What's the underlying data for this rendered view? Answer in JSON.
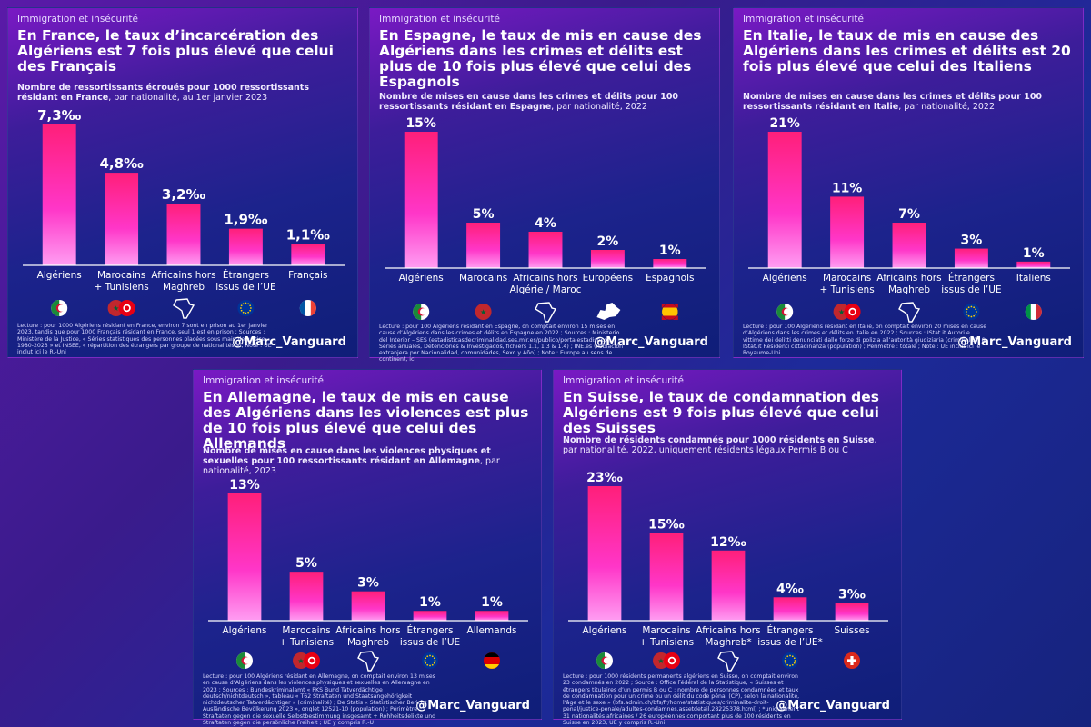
{
  "panels": [
    {
      "kicker": "Immigration et insécurité",
      "title": "En France, le taux d’incarcération des Algériens est 7 fois plus élevé que celui des Français",
      "subtitle_bold": "Nombre de ressortissants écroués pour 1000 ressortissants résidant en France",
      "subtitle_rest": ", par nationalité, au 1er janvier 2023",
      "footnote": "Lecture : pour 1000 Algériens résidant en France, environ 7 sont en prison au 1er janvier 2023, tandis que pour 1000 Français résidant en France, seul 1 est en prison ; Sources : Ministère de la Justice, « Séries statistiques des personnes placées sous main de justice 1980-2023 » et INSEE, « répartition des étrangers par groupe de nationalités » ; Note : UE inclut ici le R.-Uni",
      "handle": "@Marc_Vanguard",
      "chart_data": {
        "type": "bar",
        "categories": [
          "Algériens",
          "Marocains\n+ Tunisiens",
          "Africains hors\nMaghreb",
          "Étrangers\nissus de l’UE",
          "Français"
        ],
        "values": [
          7.3,
          4.8,
          3.2,
          1.9,
          1.1
        ],
        "value_labels": [
          "7,3‰",
          "4,8‰",
          "3,2‰",
          "1,9‰",
          "1,1‰"
        ],
        "ylim": [
          0,
          7.3
        ],
        "flags": [
          "algeria",
          "morocco-tunisia",
          "africa",
          "eu",
          "france"
        ]
      }
    },
    {
      "kicker": "Immigration et insécurité",
      "title": "En Espagne, le taux de mis en cause des Algériens dans les crimes et délits est plus de 10 fois plus élevé que celui des Espagnols",
      "subtitle_bold": "Nombre de mises en cause dans les crimes et délits pour 100 ressortissants résidant en Espagne",
      "subtitle_rest": ", par nationalité, 2022",
      "footnote": "Lecture : pour 100 Algériens résidant en Espagne, on comptait environ 15 mises en cause d’Algériens dans les crimes et délits en Espagne en 2022 ; Sources : Ministerio del Interior – SES (estadisticasdecriminalidad.ses.mir.es/publico/portalestadistico/, Series anuales, Detenciones & Investigados, fichiers 1.1, 1.3 & 1.4) ; INE.es (Población extranjera por Nacionalidad, comunidades, Sexo y Año) ; Note : Europe au sens de continent, ici",
      "handle": "@Marc_Vanguard",
      "chart_data": {
        "type": "bar",
        "categories": [
          "Algériens",
          "Marocains",
          "Africains hors\nAlgérie / Maroc",
          "Européens",
          "Espagnols"
        ],
        "values": [
          15,
          5,
          4,
          2,
          1
        ],
        "value_labels": [
          "15%",
          "5%",
          "4%",
          "2%",
          "1%"
        ],
        "ylim": [
          0,
          15
        ],
        "flags": [
          "algeria",
          "morocco",
          "africa",
          "europe",
          "spain"
        ]
      }
    },
    {
      "kicker": "Immigration et insécurité",
      "title": "En Italie, le taux de mis en cause des Algériens dans les crimes et délits est 20 fois plus élevé que celui des Italiens",
      "subtitle_bold": "Nombre de mises en cause dans les crimes et délits pour 100 ressortissants résidant en Italie",
      "subtitle_rest": ", par nationalité, 2022",
      "footnote": "Lecture : pour 100 Algériens résidant en Italie, on comptait environ 20 mises en cause d’Algériens dans les crimes et délits en Italie en 2022 ; Sources : IStat.it Autori e vittime dei delitti denunciati dalle forze di polizia all’autorità giudiziaria (criminalità) & IStat.it Residenti cittadinanza (population) ; Périmètre : totale ; Note : UE inclut ici le Royaume-Uni",
      "handle": "@Marc_Vanguard",
      "chart_data": {
        "type": "bar",
        "categories": [
          "Algériens",
          "Marocains\n+ Tunisiens",
          "Africains hors\nMaghreb",
          "Étrangers\nissus de l’UE",
          "Italiens"
        ],
        "values": [
          21,
          11,
          7,
          3,
          1
        ],
        "value_labels": [
          "21%",
          "11%",
          "7%",
          "3%",
          "1%"
        ],
        "ylim": [
          0,
          21
        ],
        "flags": [
          "algeria",
          "morocco-tunisia",
          "africa",
          "eu",
          "italy"
        ]
      }
    },
    {
      "kicker": "Immigration et insécurité",
      "title": "En Allemagne, le taux de mis en cause des Algériens dans les violences est plus de 10 fois plus élevé que celui des Allemands",
      "subtitle_bold": "Nombre de mises en cause dans les violences physiques et sexuelles pour 100 ressortissants résidant en Allemagne",
      "subtitle_rest": ", par nationalité, 2023",
      "footnote": "Lecture : pour 100 Algériens résidant en Allemagne, on comptait environ 13 mises en cause d’Algériens dans les violences physiques et sexuelles en Allemagne en 2023 ; Sources : Bundeskriminalamt « PKS Bund Tatverdächtige deutsch/nichtdeutsch », tableau « T62 Straftaten und Staatsangehörigkeit nichtdeutscher Tatverdächtiger » (criminalité) ; De Statis « Statistischer Bericht - Ausländische Bevölkerung 2023 », onglet 12521-10 (population) ; Périmètre : Straftaten gegen die sexuelle Selbstbestimmung insgesamt + Rohheitsdelikte und Straftaten gegen die persönliche Freiheit ; UE y compris R.-U",
      "handle": "@Marc_Vanguard",
      "chart_data": {
        "type": "bar",
        "categories": [
          "Algériens",
          "Marocains\n+ Tunisiens",
          "Africains hors\nMaghreb",
          "Étrangers\nissus de l’UE",
          "Allemands"
        ],
        "values": [
          13,
          5,
          3,
          1,
          1
        ],
        "value_labels": [
          "13%",
          "5%",
          "3%",
          "1%",
          "1%"
        ],
        "ylim": [
          0,
          13
        ],
        "flags": [
          "algeria",
          "morocco-tunisia",
          "africa",
          "eu",
          "germany"
        ]
      }
    },
    {
      "kicker": "Immigration et insécurité",
      "title": "En Suisse, le taux de condamnation des Algériens est 9 fois plus élevé que celui des Suisses",
      "subtitle_bold": "Nombre de résidents condamnés pour 1000 résidents en Suisse",
      "subtitle_rest": ", par nationalité, 2022, uniquement résidents légaux Permis B ou C",
      "footnote": "Lecture : pour 1000 résidents permanents algériens en Suisse, on comptait environ 23 condamnés en 2022 ; Source : Office Fédéral de la Statistique, « Suisses et étrangers titulaires d’un permis B ou C : nombre de personnes condamnées et taux de condamnation pour un crime ou un délit du code pénal (CP), selon la nationalité, l’âge et le sexe » (bfs.admin.ch/bfs/fr/home/statistiques/criminalite-droit-penal/justice-penale/adultes-condamnes.assetdetail.28225378.html) ; *uniquement 31 nationalités africaines / 26 européennes comportant plus de 100 résidents en Suisse en 2023, UE y compris R.-Uni",
      "handle": "@Marc_Vanguard",
      "chart_data": {
        "type": "bar",
        "categories": [
          "Algériens",
          "Marocains\n+ Tunisiens",
          "Africains hors\nMaghreb*",
          "Étrangers\nissus de l’UE*",
          "Suisses"
        ],
        "values": [
          23,
          15,
          12,
          4,
          3
        ],
        "value_labels": [
          "23‰",
          "15‰",
          "12‰",
          "4‰",
          "3‰"
        ],
        "ylim": [
          0,
          23
        ],
        "flags": [
          "algeria",
          "morocco-tunisia",
          "africa",
          "eu",
          "switzerland"
        ]
      }
    }
  ],
  "colors": {
    "bar_top": "#ff1f7a",
    "bar_mid": "#ff36c8",
    "bar_bottom": "#ff9df2"
  }
}
